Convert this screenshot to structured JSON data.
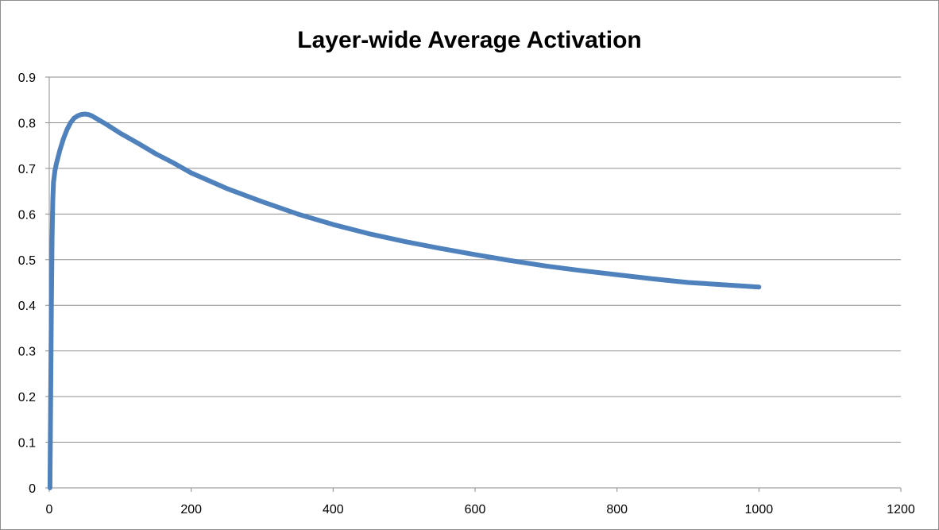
{
  "chart_data": {
    "type": "line",
    "title": "Layer-wide Average Activation",
    "xlabel": "",
    "ylabel": "",
    "xlim": [
      0,
      1200
    ],
    "ylim": [
      0,
      0.9
    ],
    "x_ticks": [
      "0",
      "200",
      "400",
      "600",
      "800",
      "1000",
      "1200"
    ],
    "y_ticks": [
      "0",
      "0.1",
      "0.2",
      "0.3",
      "0.4",
      "0.5",
      "0.6",
      "0.7",
      "0.8",
      "0.9"
    ],
    "grid": "horizontal",
    "legend": "none",
    "series": [
      {
        "color": "#4f81bd",
        "points": [
          [
            1,
            0.0
          ],
          [
            2,
            0.2
          ],
          [
            3,
            0.4
          ],
          [
            4,
            0.55
          ],
          [
            5,
            0.63
          ],
          [
            6,
            0.67
          ],
          [
            8,
            0.695
          ],
          [
            10,
            0.71
          ],
          [
            15,
            0.74
          ],
          [
            20,
            0.765
          ],
          [
            25,
            0.785
          ],
          [
            30,
            0.8
          ],
          [
            35,
            0.81
          ],
          [
            40,
            0.815
          ],
          [
            45,
            0.818
          ],
          [
            50,
            0.819
          ],
          [
            55,
            0.818
          ],
          [
            60,
            0.815
          ],
          [
            70,
            0.806
          ],
          [
            80,
            0.797
          ],
          [
            100,
            0.777
          ],
          [
            125,
            0.755
          ],
          [
            150,
            0.732
          ],
          [
            175,
            0.712
          ],
          [
            200,
            0.69
          ],
          [
            250,
            0.656
          ],
          [
            300,
            0.627
          ],
          [
            350,
            0.6
          ],
          [
            400,
            0.577
          ],
          [
            450,
            0.557
          ],
          [
            500,
            0.54
          ],
          [
            550,
            0.525
          ],
          [
            600,
            0.511
          ],
          [
            650,
            0.498
          ],
          [
            700,
            0.486
          ],
          [
            750,
            0.476
          ],
          [
            800,
            0.467
          ],
          [
            850,
            0.458
          ],
          [
            900,
            0.45
          ],
          [
            950,
            0.445
          ],
          [
            1000,
            0.44
          ]
        ]
      }
    ]
  }
}
